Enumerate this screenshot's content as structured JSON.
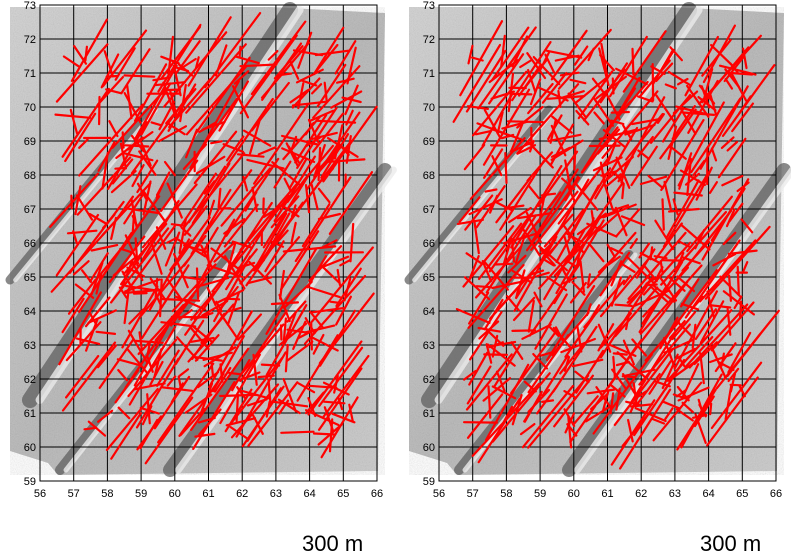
{
  "colors": {
    "lineament": "#ff0000",
    "grid": "#000000",
    "relief_light": "#d8d8d8",
    "relief_dark": "#5a5a5a",
    "background": "#ffffff"
  },
  "panels": [
    {
      "x_ticks": [
        "56",
        "57",
        "58",
        "59",
        "60",
        "61",
        "62",
        "63",
        "64",
        "65",
        "66"
      ],
      "y_ticks": [
        "73",
        "72",
        "71",
        "70",
        "69",
        "68",
        "67",
        "66",
        "65",
        "64",
        "63",
        "62",
        "61",
        "60",
        "59"
      ],
      "scale_label": "300 m",
      "seed": 11,
      "lineament_count": 520
    },
    {
      "x_ticks": [
        "56",
        "57",
        "58",
        "59",
        "60",
        "61",
        "62",
        "63",
        "64",
        "65",
        "66"
      ],
      "y_ticks": [
        "73",
        "72",
        "71",
        "70",
        "69",
        "68",
        "67",
        "66",
        "65",
        "64",
        "63",
        "62",
        "61",
        "60",
        "59"
      ],
      "scale_label": "300 m",
      "seed": 29,
      "lineament_count": 560
    }
  ]
}
